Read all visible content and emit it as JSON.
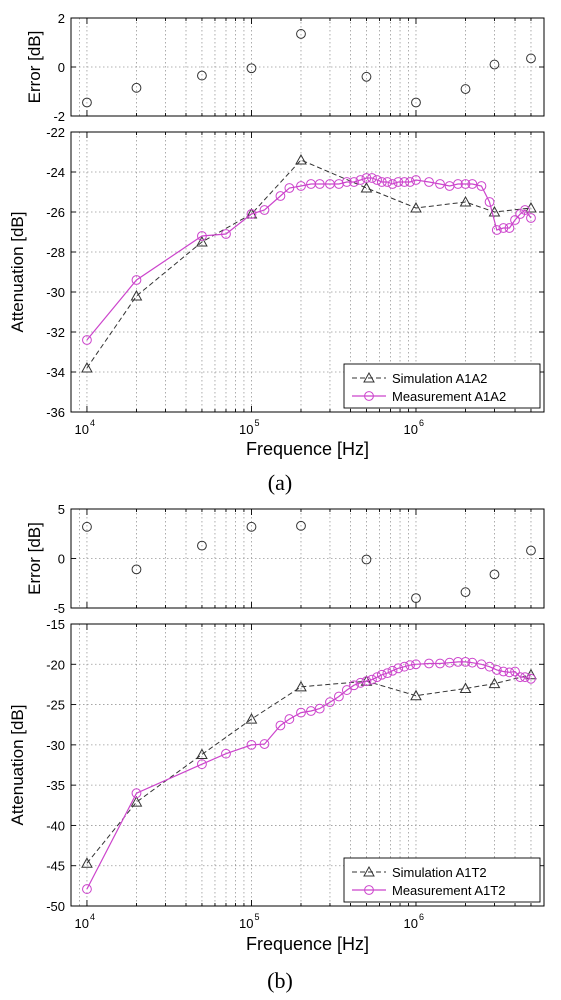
{
  "colors": {
    "simulation": "#333333",
    "measurement": "#cc44cc",
    "grid": "#999999",
    "axis": "#000000"
  },
  "chart_data": [
    {
      "panel": "a",
      "panel_label": "(a)",
      "error_plot": {
        "type": "scatter",
        "ylabel": "Error [dB]",
        "ylim": [
          -2,
          2
        ],
        "yticks": [
          2,
          0,
          -2
        ],
        "x_scale": "log",
        "xlim": [
          8000,
          6000000
        ],
        "grid": true,
        "points": [
          [
            10000,
            -1.45
          ],
          [
            20000,
            -0.85
          ],
          [
            50000,
            -0.35
          ],
          [
            100000,
            -0.05
          ],
          [
            200000,
            1.35
          ],
          [
            500000,
            -0.4
          ],
          [
            1000000,
            -1.45
          ],
          [
            2000000,
            -0.9
          ],
          [
            3000000,
            0.1
          ],
          [
            5000000,
            0.35
          ]
        ]
      },
      "attenuation_plot": {
        "type": "line",
        "ylabel": "Attenuation [dB]",
        "xlabel": "Frequence [Hz]",
        "x_scale": "log",
        "xlim": [
          8000,
          6000000
        ],
        "ylim": [
          -36,
          -22
        ],
        "yticks": [
          -22,
          -24,
          -26,
          -28,
          -30,
          -32,
          -34,
          -36
        ],
        "xticks": [
          {
            "value": 10000,
            "base": "10",
            "exp": "4"
          },
          {
            "value": 100000,
            "base": "10",
            "exp": "5"
          },
          {
            "value": 1000000,
            "base": "10",
            "exp": "6"
          }
        ],
        "grid": true,
        "legend_position": "bottom-right",
        "series": [
          {
            "name": "Simulation A1A2",
            "style": "dashed-triangle",
            "points": [
              [
                10000,
                -33.8
              ],
              [
                20000,
                -30.2
              ],
              [
                50000,
                -27.5
              ],
              [
                100000,
                -26.1
              ],
              [
                200000,
                -23.4
              ],
              [
                500000,
                -24.8
              ],
              [
                1000000,
                -25.8
              ],
              [
                2000000,
                -25.5
              ],
              [
                3000000,
                -26.0
              ],
              [
                5000000,
                -25.8
              ]
            ]
          },
          {
            "name": "Measurement A1A2",
            "style": "solid-circle",
            "points": [
              [
                10000,
                -32.4
              ],
              [
                20000,
                -29.4
              ],
              [
                50000,
                -27.2
              ],
              [
                70000,
                -27.1
              ],
              [
                100000,
                -26.1
              ],
              [
                120000,
                -25.9
              ],
              [
                150000,
                -25.2
              ],
              [
                170000,
                -24.8
              ],
              [
                200000,
                -24.7
              ],
              [
                230000,
                -24.6
              ],
              [
                260000,
                -24.6
              ],
              [
                300000,
                -24.6
              ],
              [
                340000,
                -24.6
              ],
              [
                380000,
                -24.5
              ],
              [
                420000,
                -24.5
              ],
              [
                460000,
                -24.4
              ],
              [
                500000,
                -24.3
              ],
              [
                540000,
                -24.3
              ],
              [
                580000,
                -24.4
              ],
              [
                620000,
                -24.5
              ],
              [
                670000,
                -24.5
              ],
              [
                720000,
                -24.6
              ],
              [
                780000,
                -24.5
              ],
              [
                850000,
                -24.5
              ],
              [
                920000,
                -24.5
              ],
              [
                1000000,
                -24.4
              ],
              [
                1200000,
                -24.5
              ],
              [
                1400000,
                -24.6
              ],
              [
                1600000,
                -24.7
              ],
              [
                1800000,
                -24.6
              ],
              [
                2000000,
                -24.6
              ],
              [
                2200000,
                -24.6
              ],
              [
                2500000,
                -24.7
              ],
              [
                2800000,
                -25.5
              ],
              [
                3100000,
                -26.9
              ],
              [
                3400000,
                -26.8
              ],
              [
                3700000,
                -26.8
              ],
              [
                4000000,
                -26.4
              ],
              [
                4300000,
                -26.1
              ],
              [
                4600000,
                -25.9
              ],
              [
                5000000,
                -26.3
              ]
            ]
          }
        ]
      }
    },
    {
      "panel": "b",
      "panel_label": "(b)",
      "error_plot": {
        "type": "scatter",
        "ylabel": "Error [dB]",
        "ylim": [
          -5,
          5
        ],
        "yticks": [
          5,
          0,
          -5
        ],
        "x_scale": "log",
        "xlim": [
          8000,
          6000000
        ],
        "grid": true,
        "points": [
          [
            10000,
            3.2
          ],
          [
            20000,
            -1.1
          ],
          [
            50000,
            1.3
          ],
          [
            100000,
            3.2
          ],
          [
            200000,
            3.3
          ],
          [
            500000,
            -0.1
          ],
          [
            1000000,
            -4.0
          ],
          [
            2000000,
            -3.4
          ],
          [
            3000000,
            -1.6
          ],
          [
            5000000,
            0.8
          ]
        ]
      },
      "attenuation_plot": {
        "type": "line",
        "ylabel": "Attenuation [dB]",
        "xlabel": "Frequence [Hz]",
        "x_scale": "log",
        "xlim": [
          8000,
          6000000
        ],
        "ylim": [
          -50,
          -15
        ],
        "yticks": [
          -15,
          -20,
          -25,
          -30,
          -35,
          -40,
          -45,
          -50
        ],
        "xticks": [
          {
            "value": 10000,
            "base": "10",
            "exp": "4"
          },
          {
            "value": 100000,
            "base": "10",
            "exp": "5"
          },
          {
            "value": 1000000,
            "base": "10",
            "exp": "6"
          }
        ],
        "grid": true,
        "legend_position": "bottom-right",
        "series": [
          {
            "name": "Simulation A1T2",
            "style": "dashed-triangle",
            "points": [
              [
                10000,
                -44.7
              ],
              [
                20000,
                -37.1
              ],
              [
                50000,
                -31.2
              ],
              [
                100000,
                -26.8
              ],
              [
                200000,
                -22.8
              ],
              [
                500000,
                -22.1
              ],
              [
                1000000,
                -23.9
              ],
              [
                2000000,
                -23.0
              ],
              [
                3000000,
                -22.4
              ],
              [
                5000000,
                -21.3
              ]
            ]
          },
          {
            "name": "Measurement A1T2",
            "style": "solid-circle",
            "points": [
              [
                10000,
                -47.9
              ],
              [
                20000,
                -36.0
              ],
              [
                50000,
                -32.4
              ],
              [
                70000,
                -31.1
              ],
              [
                100000,
                -30.0
              ],
              [
                120000,
                -29.9
              ],
              [
                150000,
                -27.6
              ],
              [
                170000,
                -26.8
              ],
              [
                200000,
                -26.0
              ],
              [
                230000,
                -25.8
              ],
              [
                260000,
                -25.5
              ],
              [
                300000,
                -24.7
              ],
              [
                340000,
                -24.0
              ],
              [
                380000,
                -23.2
              ],
              [
                420000,
                -22.6
              ],
              [
                460000,
                -22.3
              ],
              [
                500000,
                -22.1
              ],
              [
                540000,
                -21.9
              ],
              [
                580000,
                -21.6
              ],
              [
                620000,
                -21.3
              ],
              [
                670000,
                -21.1
              ],
              [
                720000,
                -20.8
              ],
              [
                780000,
                -20.5
              ],
              [
                850000,
                -20.3
              ],
              [
                920000,
                -20.1
              ],
              [
                1000000,
                -20.0
              ],
              [
                1200000,
                -19.9
              ],
              [
                1400000,
                -19.9
              ],
              [
                1600000,
                -19.8
              ],
              [
                1800000,
                -19.7
              ],
              [
                2000000,
                -19.7
              ],
              [
                2200000,
                -19.8
              ],
              [
                2500000,
                -20.0
              ],
              [
                2800000,
                -20.3
              ],
              [
                3100000,
                -20.7
              ],
              [
                3400000,
                -20.9
              ],
              [
                3700000,
                -21.0
              ],
              [
                4000000,
                -20.9
              ],
              [
                4300000,
                -21.6
              ],
              [
                4600000,
                -21.6
              ],
              [
                5000000,
                -21.8
              ]
            ]
          }
        ]
      }
    }
  ]
}
